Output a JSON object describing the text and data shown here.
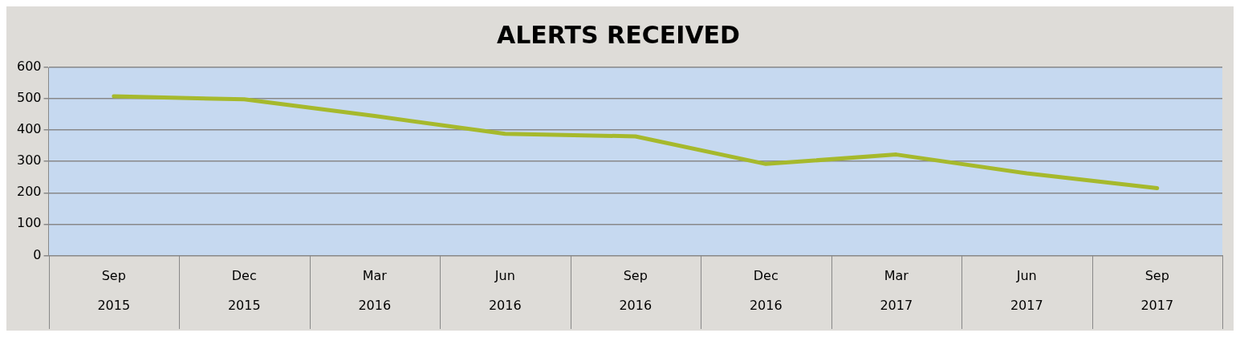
{
  "chart_data": {
    "type": "line",
    "title": "ALERTS RECEIVED",
    "categories": [
      "Sep 2015",
      "Dec 2015",
      "Mar 2016",
      "Jun 2016",
      "Sep 2016",
      "Dec 2016",
      "Mar 2017",
      "Jun 2017",
      "Sep 2017"
    ],
    "series": [
      {
        "color": "#a6b92c",
        "values": [
          508,
          498,
          445,
          388,
          380,
          292,
          322,
          262,
          215
        ]
      }
    ],
    "ylim": [
      0,
      600
    ],
    "yticks": [
      0,
      100,
      200,
      300,
      400,
      500,
      600
    ],
    "grid": "y",
    "legend": false,
    "marker": "none",
    "line_style": "solid"
  }
}
